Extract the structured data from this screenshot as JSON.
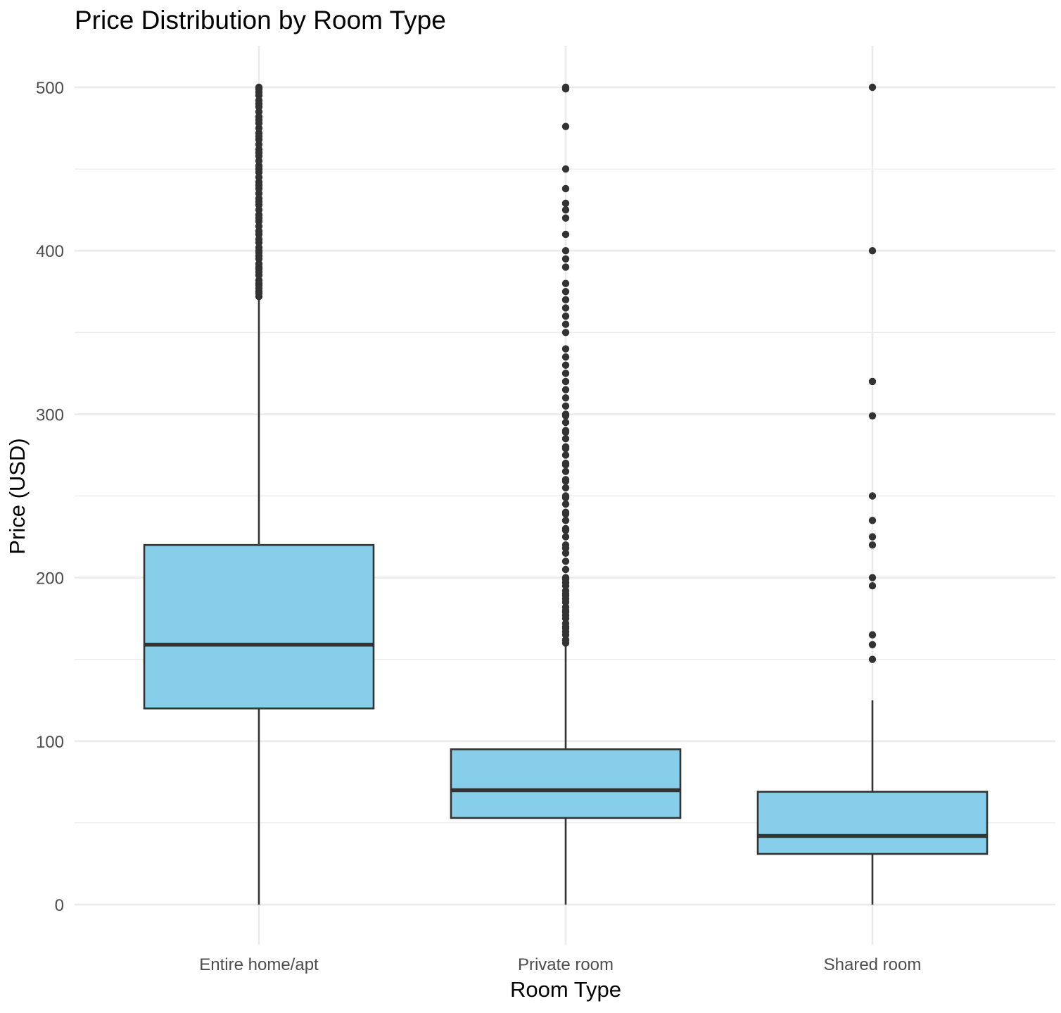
{
  "chart_data": {
    "type": "box",
    "title": "Price Distribution by Room Type",
    "xlabel": "Room Type",
    "ylabel": "Price (USD)",
    "ylim": [
      -25,
      525
    ],
    "y_ticks": [
      0,
      100,
      200,
      300,
      400,
      500
    ],
    "y_minor_ticks": [
      50,
      150,
      250,
      350,
      450
    ],
    "grid": true,
    "legend": "none",
    "colors": {
      "box_fill": "#87CEEB",
      "line": "#333333",
      "grid": "#ebebeb"
    },
    "categories": [
      "Entire home/apt",
      "Private room",
      "Shared room"
    ],
    "boxes": [
      {
        "category": "Entire home/apt",
        "whisker_low": 0,
        "q1": 120,
        "median": 159,
        "q3": 220,
        "whisker_high": 370,
        "outliers": [
          372,
          374,
          375,
          377,
          379,
          380,
          382,
          385,
          387,
          389,
          390,
          392,
          395,
          397,
          399,
          400,
          402,
          405,
          407,
          410,
          412,
          415,
          418,
          420,
          422,
          425,
          428,
          430,
          432,
          435,
          438,
          440,
          442,
          445,
          448,
          450,
          452,
          455,
          458,
          460,
          462,
          465,
          468,
          470,
          472,
          475,
          478,
          480,
          482,
          485,
          488,
          490,
          492,
          495,
          497,
          499,
          500
        ]
      },
      {
        "category": "Private room",
        "whisker_low": 0,
        "q1": 53,
        "median": 70,
        "q3": 95,
        "whisker_high": 158,
        "outliers": [
          160,
          162,
          165,
          167,
          169,
          170,
          172,
          175,
          177,
          179,
          180,
          182,
          185,
          187,
          189,
          190,
          192,
          195,
          197,
          199,
          200,
          205,
          210,
          215,
          218,
          220,
          225,
          229,
          230,
          235,
          239,
          240,
          245,
          249,
          250,
          255,
          259,
          260,
          265,
          269,
          270,
          275,
          279,
          280,
          285,
          289,
          290,
          295,
          299,
          300,
          305,
          310,
          315,
          320,
          325,
          330,
          335,
          340,
          350,
          355,
          360,
          365,
          370,
          375,
          380,
          390,
          395,
          400,
          410,
          420,
          425,
          429,
          438,
          450,
          476,
          499,
          500
        ]
      },
      {
        "category": "Shared room",
        "whisker_low": 0,
        "q1": 31,
        "median": 42,
        "q3": 69,
        "whisker_high": 125,
        "outliers": [
          150,
          159,
          165,
          195,
          200,
          220,
          225,
          235,
          250,
          299,
          320,
          400,
          500
        ]
      }
    ]
  }
}
